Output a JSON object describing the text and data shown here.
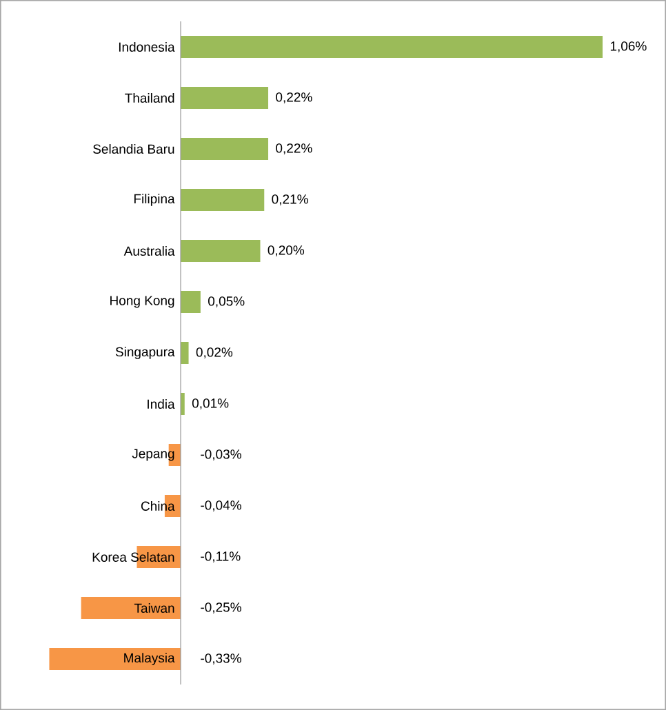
{
  "chart_data": {
    "type": "bar",
    "orientation": "horizontal",
    "categories": [
      "Indonesia",
      "Thailand",
      "Selandia Baru",
      "Filipina",
      "Australia",
      "Hong Kong",
      "Singapura",
      "India",
      "Jepang",
      "China",
      "Korea Selatan",
      "Taiwan",
      "Malaysia"
    ],
    "values": [
      1.06,
      0.22,
      0.22,
      0.21,
      0.2,
      0.05,
      0.02,
      0.01,
      -0.03,
      -0.04,
      -0.11,
      -0.25,
      -0.33
    ],
    "value_labels": [
      "1,06%",
      "0,22%",
      "0,22%",
      "0,21%",
      "0,20%",
      "0,05%",
      "0,02%",
      "0,01%",
      "-0,03%",
      "-0,04%",
      "-0,11%",
      "-0,25%",
      "-0,33%"
    ],
    "colors": [
      "#9bbb59",
      "#9bbb59",
      "#9bbb59",
      "#9bbb59",
      "#9bbb59",
      "#9bbb59",
      "#9bbb59",
      "#9bbb59",
      "#f79646",
      "#f79646",
      "#f79646",
      "#f79646",
      "#f79646"
    ]
  }
}
